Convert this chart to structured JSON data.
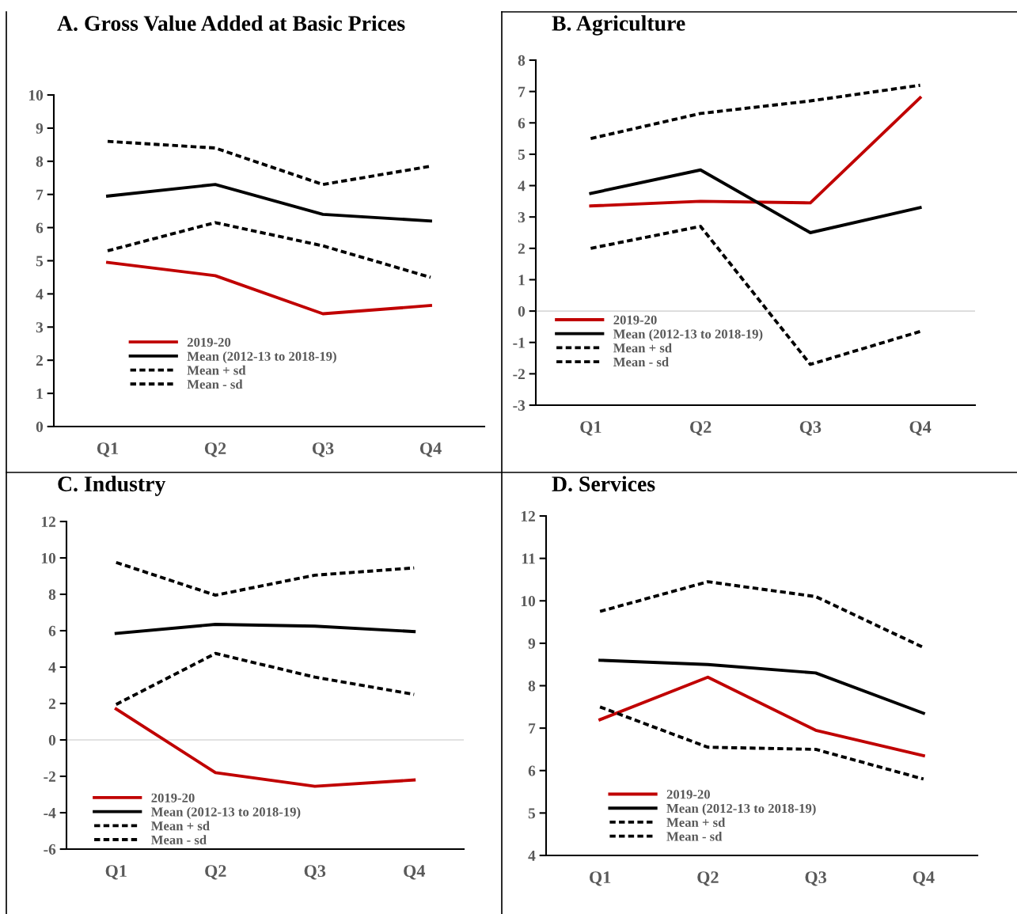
{
  "chart_data": [
    {
      "type": "line",
      "title": "A. Gross Value Added at Basic Prices",
      "categories": [
        "Q1",
        "Q2",
        "Q3",
        "Q4"
      ],
      "ylim": [
        0,
        10
      ],
      "yticks": [
        0,
        1,
        2,
        3,
        4,
        5,
        6,
        7,
        8,
        9,
        10
      ],
      "grid": false,
      "legend": "bottom left",
      "series": [
        {
          "name": "2019-20",
          "color": "#c00000",
          "line_style": "solid",
          "values": [
            4.95,
            4.55,
            3.4,
            3.65
          ]
        },
        {
          "name": "Mean (2012-13 to 2018-19)",
          "color": "#000000",
          "line_style": "solid",
          "values": [
            6.95,
            7.3,
            6.4,
            6.2
          ]
        },
        {
          "name": "Mean + sd",
          "color": "#000000",
          "line_style": "dashed",
          "values": [
            8.6,
            8.4,
            7.3,
            7.85
          ]
        },
        {
          "name": "Mean - sd",
          "color": "#000000",
          "line_style": "dashed",
          "values": [
            5.3,
            6.15,
            5.45,
            4.5
          ]
        }
      ]
    },
    {
      "type": "line",
      "title": "B. Agriculture",
      "categories": [
        "Q1",
        "Q2",
        "Q3",
        "Q4"
      ],
      "ylim": [
        -3,
        8
      ],
      "yticks": [
        -3,
        -2,
        -1,
        0,
        1,
        2,
        3,
        4,
        5,
        6,
        7,
        8
      ],
      "grid": false,
      "legend": "bottom left",
      "ref_lines": [
        {
          "axis": "y",
          "value": 0,
          "color": "#d9d9d9"
        }
      ],
      "series": [
        {
          "name": "2019-20",
          "color": "#c00000",
          "line_style": "solid",
          "values": [
            3.35,
            3.5,
            3.45,
            6.8
          ]
        },
        {
          "name": "Mean (2012-13 to 2018-19)",
          "color": "#000000",
          "line_style": "solid",
          "values": [
            3.75,
            4.5,
            2.5,
            3.3
          ]
        },
        {
          "name": "Mean + sd",
          "color": "#000000",
          "line_style": "dashed",
          "values": [
            5.5,
            6.3,
            6.7,
            7.2
          ]
        },
        {
          "name": "Mean - sd",
          "color": "#000000",
          "line_style": "dashed",
          "values": [
            2.0,
            2.7,
            -1.7,
            -0.65
          ]
        }
      ]
    },
    {
      "type": "line",
      "title": "C. Industry",
      "categories": [
        "Q1",
        "Q2",
        "Q3",
        "Q4"
      ],
      "ylim": [
        -6,
        12
      ],
      "yticks": [
        -6,
        -4,
        -2,
        0,
        2,
        4,
        6,
        8,
        10,
        12
      ],
      "grid": false,
      "legend": "bottom left",
      "ref_lines": [
        {
          "axis": "y",
          "value": 0,
          "color": "#d9d9d9"
        }
      ],
      "series": [
        {
          "name": "2019-20",
          "color": "#c00000",
          "line_style": "solid",
          "values": [
            1.7,
            -1.8,
            -2.55,
            -2.2
          ]
        },
        {
          "name": "Mean (2012-13 to 2018-19)",
          "color": "#000000",
          "line_style": "solid",
          "values": [
            5.85,
            6.35,
            6.25,
            5.95
          ]
        },
        {
          "name": "Mean + sd",
          "color": "#000000",
          "line_style": "dashed",
          "values": [
            9.75,
            7.95,
            9.05,
            9.45
          ]
        },
        {
          "name": "Mean - sd",
          "color": "#000000",
          "line_style": "dashed",
          "values": [
            1.95,
            4.75,
            3.45,
            2.5
          ]
        }
      ]
    },
    {
      "type": "line",
      "title": "D. Services",
      "categories": [
        "Q1",
        "Q2",
        "Q3",
        "Q4"
      ],
      "ylim": [
        4,
        12
      ],
      "yticks": [
        4,
        5,
        6,
        7,
        8,
        9,
        10,
        11,
        12
      ],
      "grid": false,
      "legend": "bottom left",
      "series": [
        {
          "name": "2019-20",
          "color": "#c00000",
          "line_style": "solid",
          "values": [
            7.2,
            8.2,
            6.95,
            6.35
          ]
        },
        {
          "name": "Mean (2012-13 to 2018-19)",
          "color": "#000000",
          "line_style": "solid",
          "values": [
            8.6,
            8.5,
            8.3,
            7.35
          ]
        },
        {
          "name": "Mean + sd",
          "color": "#000000",
          "line_style": "dashed",
          "values": [
            9.75,
            10.45,
            10.1,
            8.9
          ]
        },
        {
          "name": "Mean - sd",
          "color": "#000000",
          "line_style": "dashed",
          "values": [
            7.5,
            6.55,
            6.5,
            5.8
          ]
        }
      ]
    }
  ]
}
